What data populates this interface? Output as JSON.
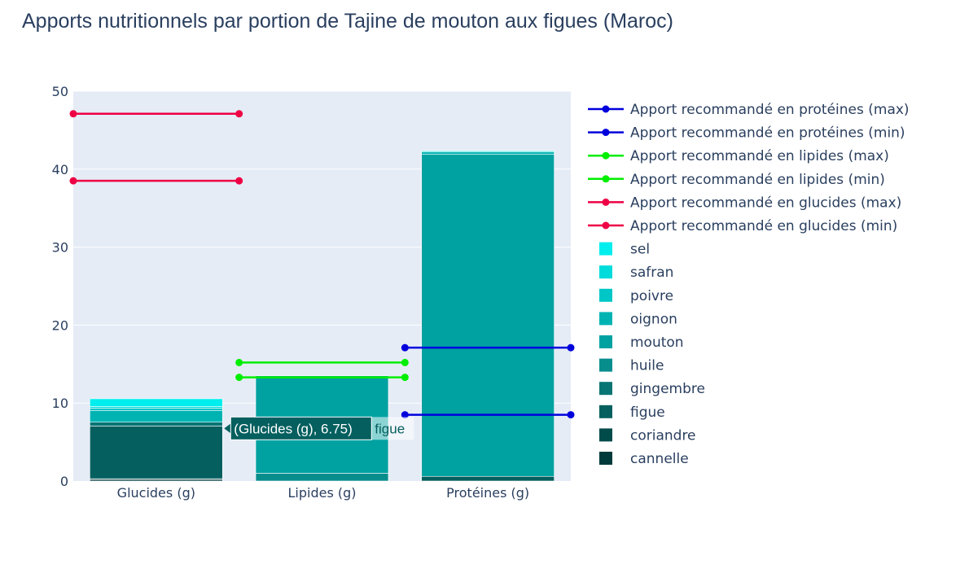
{
  "chart_data": {
    "type": "bar",
    "barmode": "stack",
    "title": "Apports nutritionnels par portion de Tajine de mouton aux figues (Maroc)",
    "categories": [
      "Glucides (g)",
      "Lipides (g)",
      "Protéines (g)"
    ],
    "ylim": [
      0,
      50
    ],
    "yticks": [
      0,
      10,
      20,
      30,
      40,
      50
    ],
    "grid": true,
    "legend_position": "right",
    "series": [
      {
        "name": "cannelle",
        "color": "#003a3a",
        "values": [
          0.2,
          0.0,
          0.0
        ]
      },
      {
        "name": "coriandre",
        "color": "#024b4b",
        "values": [
          0.1,
          0.0,
          0.0
        ]
      },
      {
        "name": "figue",
        "color": "#055f5f",
        "values": [
          6.75,
          0.0,
          0.6
        ]
      },
      {
        "name": "gingembre",
        "color": "#097474",
        "values": [
          0.5,
          0.0,
          0.0
        ]
      },
      {
        "name": "huile",
        "color": "#088d8d",
        "values": [
          0.0,
          1.0,
          0.0
        ]
      },
      {
        "name": "mouton",
        "color": "#00a1a1",
        "values": [
          0.0,
          12.5,
          41.3
        ]
      },
      {
        "name": "oignon",
        "color": "#00b3b3",
        "values": [
          1.5,
          0.0,
          0.3
        ]
      },
      {
        "name": "poivre",
        "color": "#00c7c7",
        "values": [
          0.3,
          0.0,
          0.1
        ]
      },
      {
        "name": "safran",
        "color": "#00dbdb",
        "values": [
          0.2,
          0.0,
          0.1
        ]
      },
      {
        "name": "sel",
        "color": "#00eeee",
        "values": [
          1.0,
          0.0,
          0.0
        ]
      }
    ],
    "reference_lines": [
      {
        "name": "Apport recommandé en protéines (max)",
        "color": "#0000dd",
        "category": "Protéines (g)",
        "value": 17.1
      },
      {
        "name": "Apport recommandé en protéines (min)",
        "color": "#0000dd",
        "category": "Protéines (g)",
        "value": 8.5
      },
      {
        "name": "Apport recommandé en lipides (max)",
        "color": "#00ee00",
        "category": "Lipides (g)",
        "value": 15.2
      },
      {
        "name": "Apport recommandé en lipides (min)",
        "color": "#00ee00",
        "category": "Lipides (g)",
        "value": 13.3
      },
      {
        "name": "Apport recommandé en glucides (max)",
        "color": "#ee0044",
        "category": "Glucides (g)",
        "value": 47.1
      },
      {
        "name": "Apport recommandé en glucides (min)",
        "color": "#ee0044",
        "category": "Glucides (g)",
        "value": 38.5
      }
    ],
    "hover": {
      "label": "(Glucides (g), 6.75)",
      "series": "figue",
      "category": "Glucides (g)",
      "value": 6.75
    }
  }
}
